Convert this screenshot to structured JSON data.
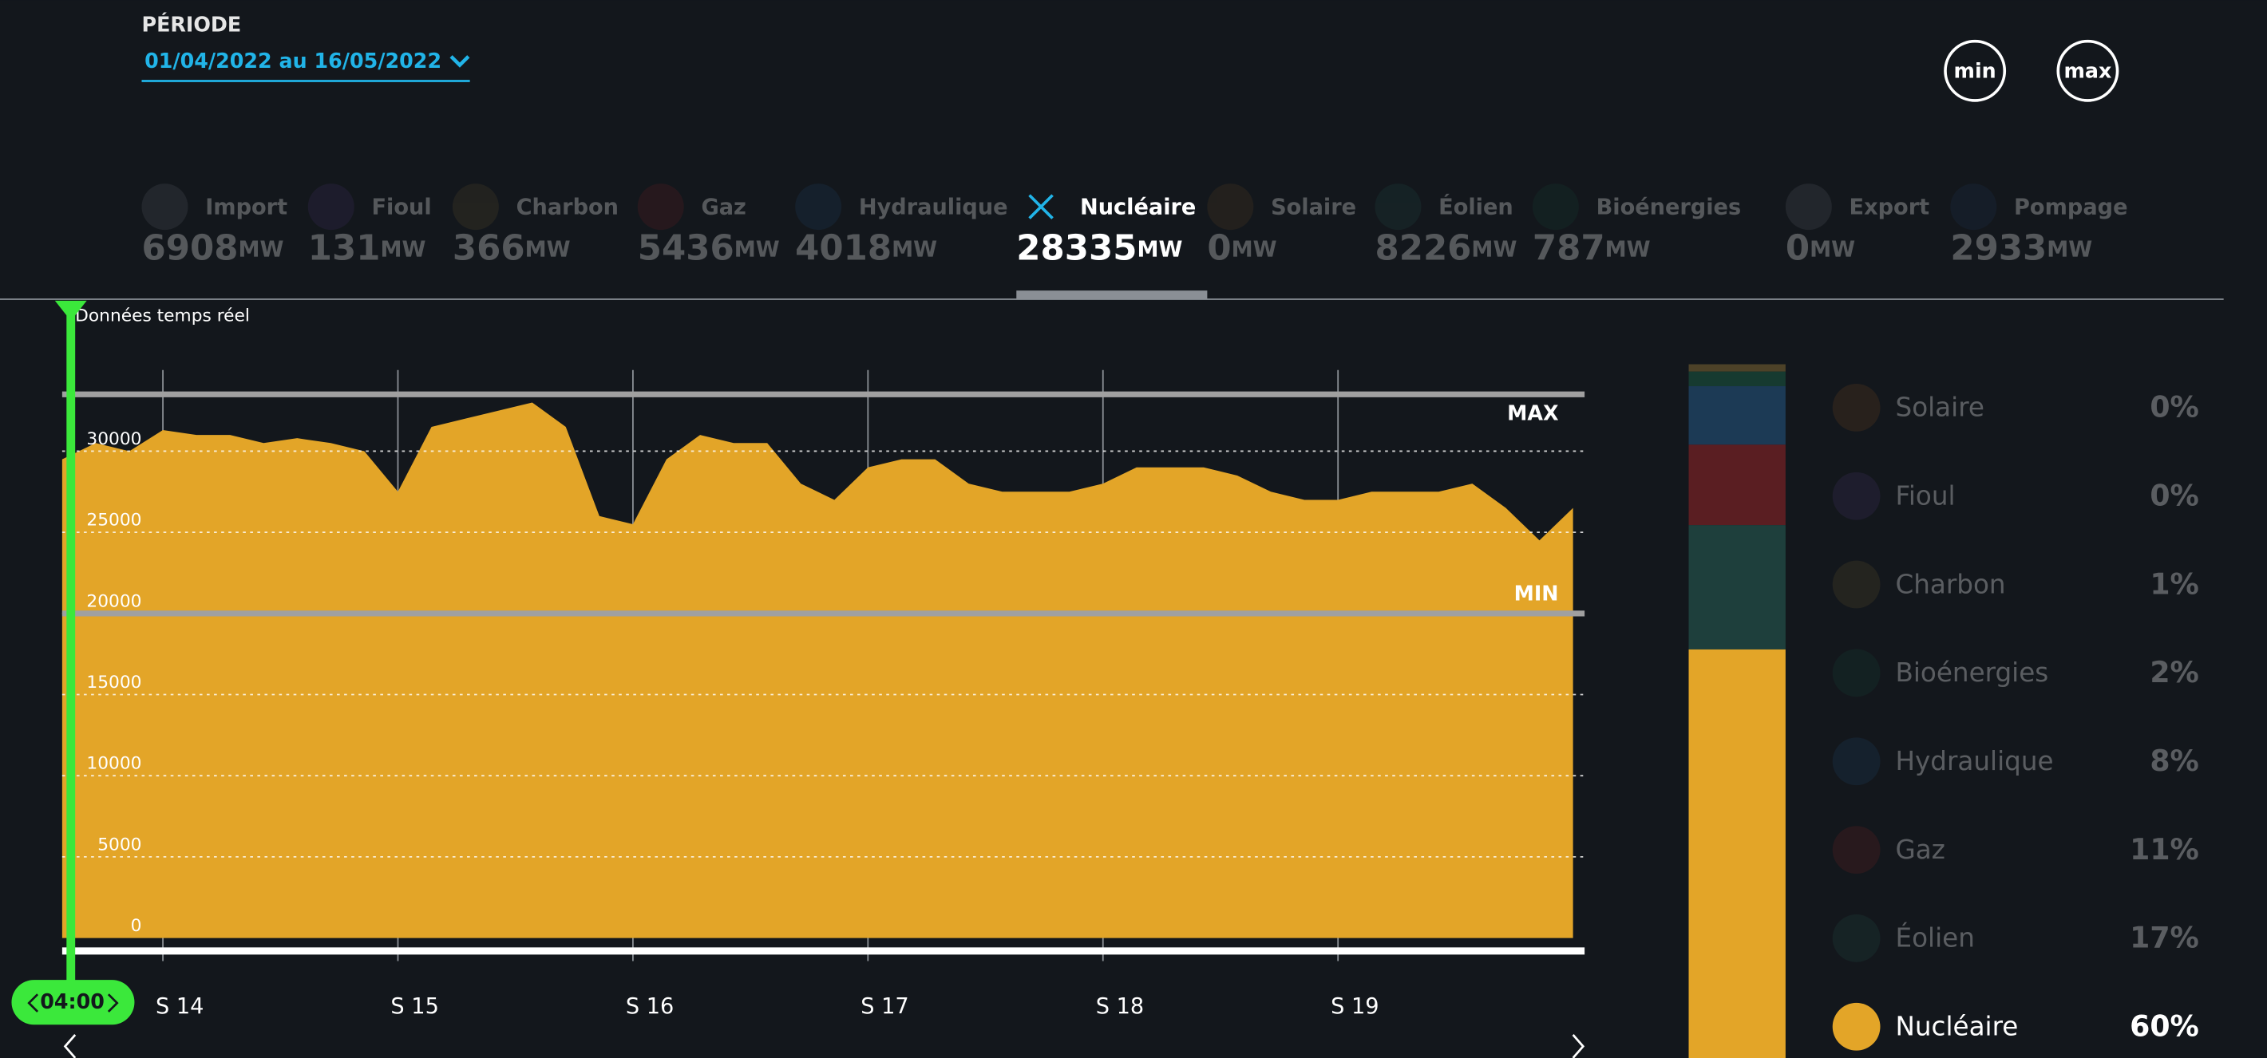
{
  "period": {
    "label": "PÉRIODE",
    "value": "01/04/2022 au 16/05/2022"
  },
  "buttons": [
    "min",
    "max"
  ],
  "unit": "MW",
  "sources": [
    {
      "name": "Import",
      "value": 6908
    },
    {
      "name": "Fioul",
      "value": 131
    },
    {
      "name": "Charbon",
      "value": 366
    },
    {
      "name": "Gaz",
      "value": 5436
    },
    {
      "name": "Hydraulique",
      "value": 4018
    },
    {
      "name": "Nucléaire",
      "value": 28335,
      "selected": true
    },
    {
      "name": "Solaire",
      "value": 0
    },
    {
      "name": "Éolien",
      "value": 8226
    },
    {
      "name": "Bioénergies",
      "value": 787
    },
    {
      "name": "Export",
      "value": 0
    },
    {
      "name": "Pompage",
      "value": 2933
    }
  ],
  "realtime_label": "Données temps réel",
  "time": "04:00",
  "chart_data": {
    "type": "area",
    "color": "#e3a528",
    "categories": [
      null,
      null,
      null,
      "S 14",
      null,
      null,
      null,
      null,
      null,
      null,
      "S 15",
      null,
      null,
      null,
      null,
      null,
      null,
      "S 16",
      null,
      null,
      null,
      null,
      null,
      null,
      "S 17",
      null,
      null,
      null,
      null,
      null,
      null,
      "S 18",
      null,
      null,
      null,
      null,
      null,
      null,
      "S 19",
      null,
      null,
      null,
      null,
      null,
      null,
      null
    ],
    "values": [
      29500,
      30500,
      30000,
      31300,
      31000,
      31000,
      30500,
      30800,
      30500,
      30000,
      27500,
      31500,
      32000,
      32500,
      33000,
      31500,
      26000,
      25500,
      29500,
      31000,
      30500,
      30500,
      28000,
      27000,
      29000,
      29500,
      29500,
      28000,
      27500,
      27500,
      27500,
      28000,
      29000,
      29000,
      29000,
      28500,
      27500,
      27000,
      27000,
      27500,
      27500,
      27500,
      28000,
      26500,
      24500,
      26500
    ],
    "ylim": [
      0,
      35000
    ],
    "yticks": [
      0,
      5000,
      10000,
      15000,
      20000,
      25000,
      30000
    ],
    "grid": true,
    "max_line": {
      "label": "MAX",
      "value": 33500
    },
    "min_line": {
      "label": "MIN",
      "value": 20000
    }
  },
  "mix": [
    {
      "name": "Solaire",
      "value": 0,
      "label": "0%"
    },
    {
      "name": "Fioul",
      "value": 0,
      "label": "0%"
    },
    {
      "name": "Charbon",
      "value": 1,
      "label": "1%"
    },
    {
      "name": "Bioénergies",
      "value": 2,
      "label": "2%"
    },
    {
      "name": "Hydraulique",
      "value": 8,
      "label": "8%"
    },
    {
      "name": "Gaz",
      "value": 11,
      "label": "11%"
    },
    {
      "name": "Éolien",
      "value": 17,
      "label": "17%"
    },
    {
      "name": "Nucléaire",
      "value": 60,
      "label": "60%",
      "selected": true
    }
  ]
}
